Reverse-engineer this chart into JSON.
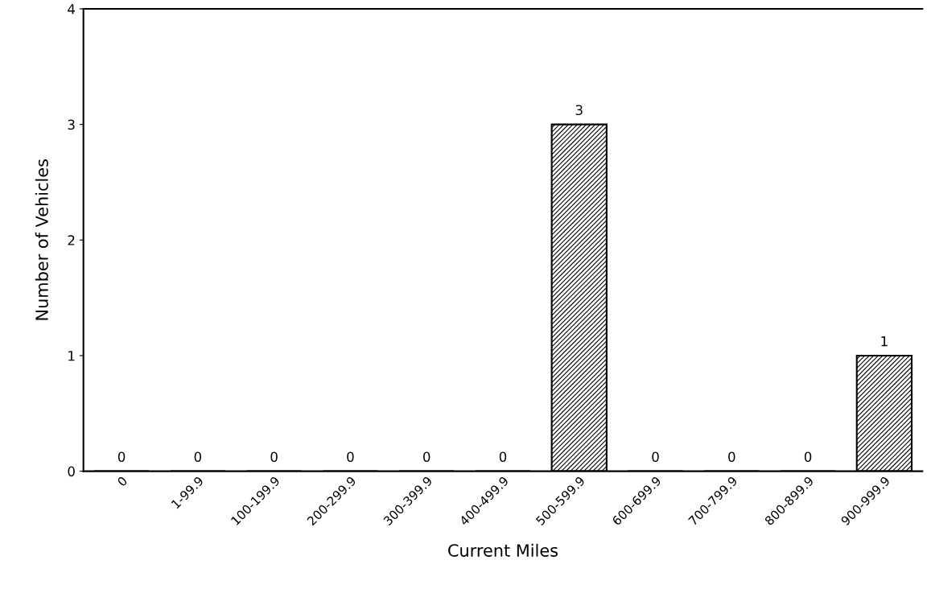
{
  "chart_data": {
    "type": "bar",
    "xlabel": "Current Miles",
    "ylabel": "Number of Vehicles",
    "categories": [
      "0",
      "1-99.9",
      "100-199.9",
      "200-299.9",
      "300-399.9",
      "400-499.9",
      "500-599.9",
      "600-699.9",
      "700-799.9",
      "800-899.9",
      "900-999.9"
    ],
    "values": [
      0,
      0,
      0,
      0,
      0,
      0,
      3,
      0,
      0,
      0,
      1
    ],
    "color": "#000000",
    "ylim": [
      0,
      4
    ],
    "yticks": [
      0,
      1,
      2,
      3,
      4
    ],
    "data_labels": true,
    "grid": false,
    "legend": false
  }
}
